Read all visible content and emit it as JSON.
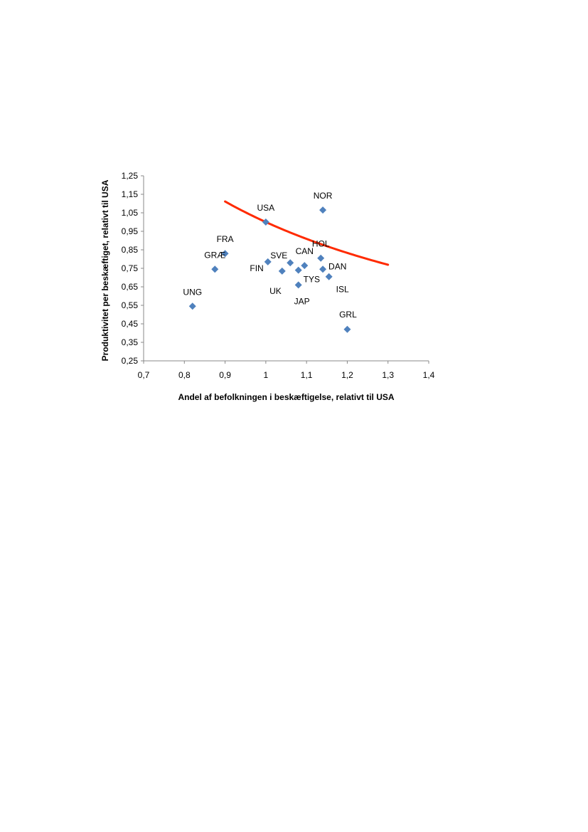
{
  "chart_data": {
    "type": "scatter",
    "xlabel": "Andel af befolkningen i beskæftigelse, relativt til USA",
    "ylabel": "Produktivitet per beskæftiget, relativt til USA",
    "xlim": [
      0.7,
      1.4
    ],
    "ylim": [
      0.25,
      1.25
    ],
    "x_ticks": [
      "0,7",
      "0,8",
      "0,9",
      "1",
      "1,1",
      "1,2",
      "1,3",
      "1,4"
    ],
    "y_ticks": [
      "1,25",
      "1,15",
      "1,05",
      "0,95",
      "0,85",
      "0,75",
      "0,65",
      "0,55",
      "0,45",
      "0,35",
      "0,25"
    ],
    "grid": false,
    "legend": "none",
    "marker_color": "#4F81BD",
    "curve_color": "#FF2A00",
    "points": [
      {
        "label": "USA",
        "x": 1.0,
        "y": 1.0
      },
      {
        "label": "NOR",
        "x": 1.14,
        "y": 1.065
      },
      {
        "label": "FRA",
        "x": 0.9,
        "y": 0.83
      },
      {
        "label": "GRÆ",
        "x": 0.875,
        "y": 0.745
      },
      {
        "label": "UNG",
        "x": 0.82,
        "y": 0.545
      },
      {
        "label": "FIN",
        "x": 1.005,
        "y": 0.785
      },
      {
        "label": "SVE",
        "x": 1.06,
        "y": 0.78
      },
      {
        "label": "UK",
        "x": 1.04,
        "y": 0.735
      },
      {
        "label": "CAN",
        "x": 1.095,
        "y": 0.765
      },
      {
        "label": "TYS",
        "x": 1.08,
        "y": 0.74
      },
      {
        "label": "JAP",
        "x": 1.08,
        "y": 0.66
      },
      {
        "label": "HOL",
        "x": 1.135,
        "y": 0.805
      },
      {
        "label": "DAN",
        "x": 1.14,
        "y": 0.745
      },
      {
        "label": "ISL",
        "x": 1.155,
        "y": 0.705
      },
      {
        "label": "GRL",
        "x": 1.2,
        "y": 0.42
      }
    ],
    "curve": {
      "x_range": [
        0.9,
        1.3
      ],
      "formula": "y = 1 / x"
    }
  }
}
